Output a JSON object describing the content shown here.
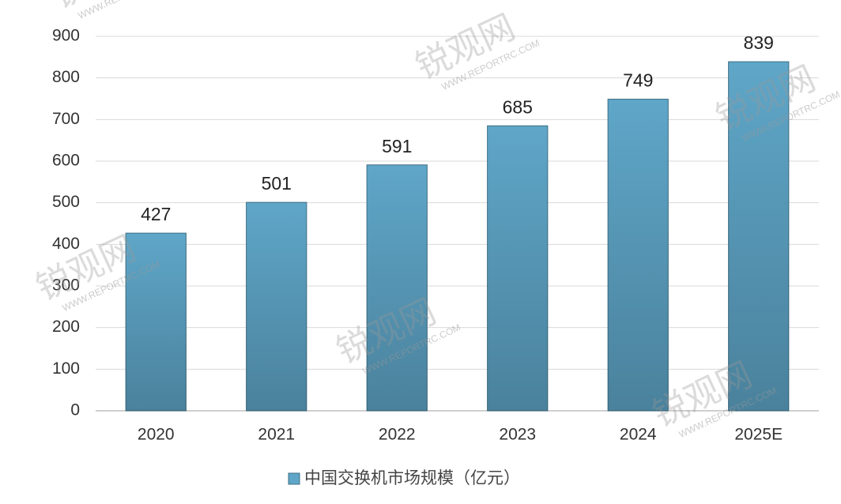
{
  "chart_data": {
    "type": "bar",
    "categories": [
      "2020",
      "2021",
      "2022",
      "2023",
      "2024",
      "2025E"
    ],
    "series": [
      {
        "name": "中国交换机市场规模（亿元）",
        "color": "#5fa6c8",
        "values": [
          427,
          501,
          591,
          685,
          749,
          839
        ]
      }
    ],
    "ylim": [
      0,
      900
    ],
    "yticks": [
      0,
      100,
      200,
      300,
      400,
      500,
      600,
      700,
      800,
      900
    ],
    "grid": true,
    "legend": "bottom",
    "watermark": {
      "logo": "锐观网",
      "url": "WWW.REPORTRC.COM"
    }
  }
}
